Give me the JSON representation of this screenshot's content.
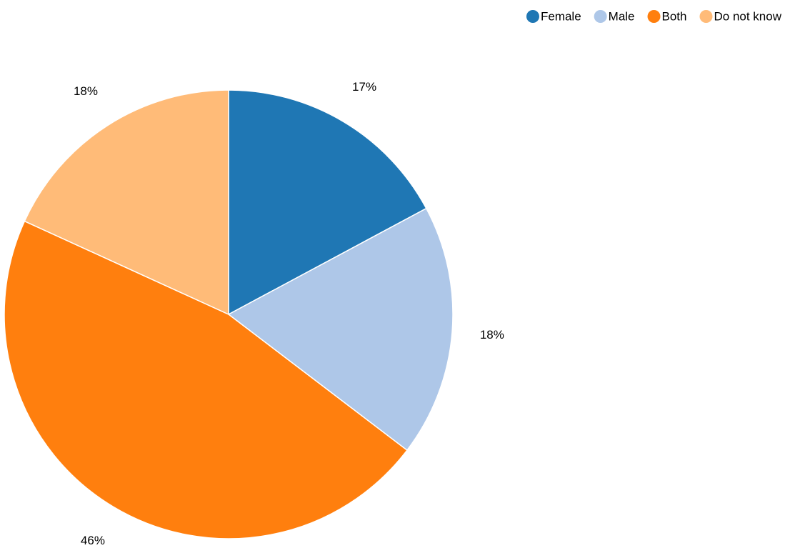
{
  "chart_data": {
    "type": "pie",
    "categories": [
      "Female",
      "Male",
      "Both",
      "Do not know"
    ],
    "values": [
      17,
      18,
      46,
      18
    ],
    "value_labels": [
      "17%",
      "18%",
      "46%",
      "18%"
    ],
    "colors": [
      "#1f77b4",
      "#aec7e8",
      "#ff7f0e",
      "#ffbb78"
    ],
    "legend": "top-right"
  }
}
